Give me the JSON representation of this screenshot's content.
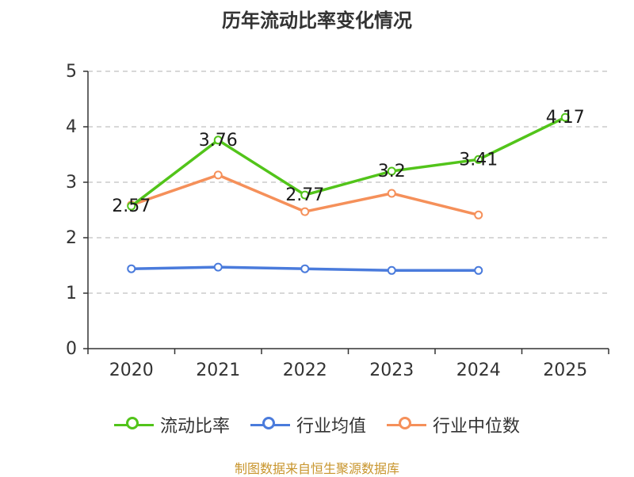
{
  "chart_data": {
    "type": "line",
    "title": "历年流动比率变化情况",
    "categories": [
      "2020",
      "2021",
      "2022",
      "2023",
      "2024",
      "2025"
    ],
    "ylim": [
      0,
      5
    ],
    "yticks": [
      0,
      1,
      2,
      3,
      4,
      5
    ],
    "grid": true,
    "legend_position": "bottom",
    "series": [
      {
        "name": "流动比率",
        "color": "#52c41a",
        "values": [
          2.57,
          3.76,
          2.77,
          3.2,
          3.41,
          4.17
        ],
        "labels": [
          "2.57",
          "3.76",
          "2.77",
          "3.2",
          "3.41",
          "4.17"
        ]
      },
      {
        "name": "行业均值",
        "color": "#4a7bdc",
        "values": [
          1.44,
          1.47,
          1.44,
          1.41,
          1.41,
          null
        ]
      },
      {
        "name": "行业中位数",
        "color": "#f5905a",
        "values": [
          2.59,
          3.13,
          2.47,
          2.8,
          2.41,
          null
        ]
      }
    ],
    "source": "制图数据来自恒生聚源数据库"
  }
}
